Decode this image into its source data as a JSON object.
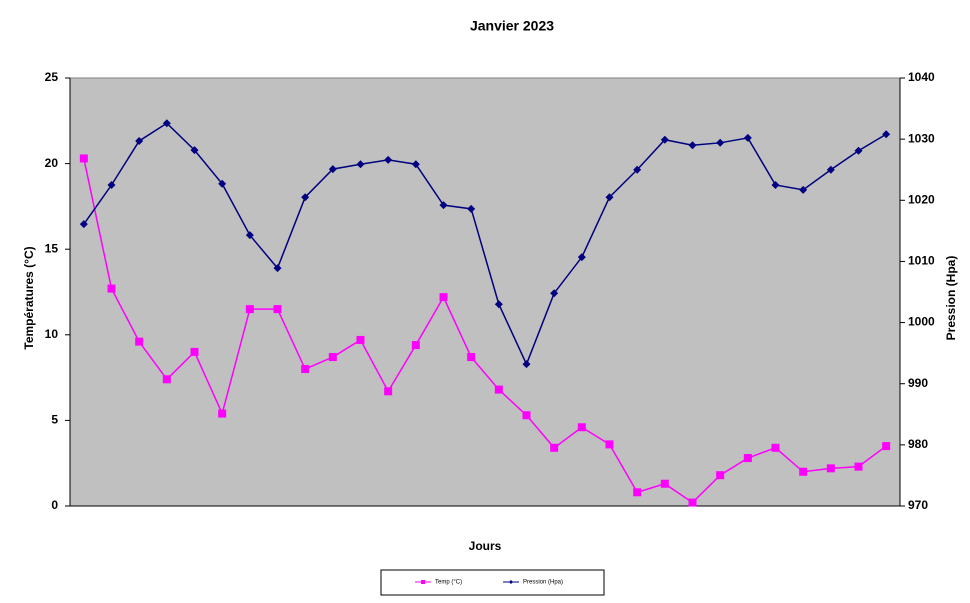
{
  "chart_data": {
    "type": "line",
    "title": "Janvier 2023",
    "x_label": "Jours",
    "y_label": "Températures (°C)",
    "y2_label": "Pression (Hpa)",
    "categories": [
      null,
      null,
      null,
      null,
      null,
      null,
      null,
      null,
      null,
      null,
      null,
      null,
      null,
      null,
      null,
      null,
      null,
      null,
      null,
      null,
      null,
      null,
      null,
      null,
      null,
      null,
      null,
      null,
      null,
      null
    ],
    "series": [
      {
        "name": "Temp (°C)",
        "color": "#ff00ff",
        "marker": "square",
        "values": [
          20.3,
          12.7,
          9.6,
          7.4,
          9.0,
          5.4,
          11.5,
          11.5,
          8.0,
          8.7,
          9.7,
          6.7,
          9.4,
          12.2,
          8.7,
          6.8,
          5.3,
          3.4,
          4.6,
          3.6,
          0.8,
          1.3,
          0.2,
          1.8,
          2.8,
          3.4,
          2.0,
          2.2,
          2.3,
          3.5
        ]
      },
      {
        "name": "Pression (Hpa)",
        "color": "#000080",
        "marker": "diamond",
        "axis": "y2",
        "values": [
          1016.1,
          1022.5,
          1029.7,
          1032.6,
          1028.2,
          1022.7,
          1014.3,
          1008.9,
          1020.5,
          1025.1,
          1025.9,
          1026.6,
          1025.9,
          1019.2,
          1018.6,
          1003.0,
          993.2,
          1004.8,
          1010.7,
          1020.5,
          1025.0,
          1029.9,
          1029.0,
          1029.4,
          1030.2,
          1022.5,
          1021.7,
          1025.0,
          1028.1,
          1030.8
        ]
      }
    ],
    "ylim": [
      0,
      25
    ],
    "yticks": [
      0,
      5,
      10,
      15,
      20,
      25
    ],
    "y2lim": [
      970,
      1040
    ],
    "y2ticks": [
      970,
      980,
      990,
      1000,
      1010,
      1020,
      1030,
      1040
    ],
    "plot_background": "#c0c0c0",
    "legend": "bottom"
  }
}
